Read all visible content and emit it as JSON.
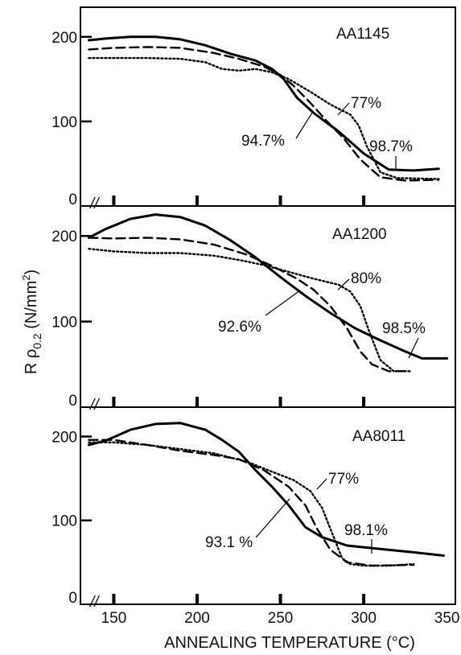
{
  "chart_data": {
    "type": "line",
    "xlabel": "ANNEALING TEMPERATURE (°C)",
    "ylabel": {
      "prefix": "R ρ",
      "subscript": "0.2",
      "units_base": " (N/mm",
      "units_sup": "2",
      "units_close": ")"
    },
    "xlim": [
      130,
      355
    ],
    "xticks": [
      "150",
      "200",
      "250",
      "300",
      "350"
    ],
    "axis_break": "//",
    "panels": [
      {
        "label": "AA1145",
        "ylim": [
          0,
          235
        ],
        "yticks": [
          "0",
          "100",
          "200"
        ],
        "series": [
          {
            "name": "94.7%",
            "style": "solid",
            "x": [
              135,
              145,
              160,
              175,
              190,
              205,
              220,
              235,
              245,
              252,
              260,
              270,
              285,
              300,
              315,
              330,
              345
            ],
            "y": [
              196,
              198,
              200,
              200,
              197,
              190,
              180,
              172,
              162,
              150,
              128,
              110,
              88,
              62,
              43,
              42,
              44
            ]
          },
          {
            "name": "",
            "style": "dashed",
            "x": [
              135,
              150,
              170,
              190,
              210,
              225,
              240,
              250,
              258,
              268,
              278,
              288,
              298,
              310,
              325,
              345
            ],
            "y": [
              185,
              187,
              188,
              187,
              181,
              174,
              165,
              155,
              142,
              122,
              100,
              80,
              55,
              34,
              30,
              31
            ]
          },
          {
            "name": "77%",
            "style": "dotted",
            "x": [
              135,
              150,
              170,
              190,
              205,
              215,
              225,
              235,
              245,
              255,
              268,
              280,
              292,
              297,
              302,
              310,
              320,
              345
            ],
            "y": [
              175,
              175,
              175,
              174,
              170,
              162,
              160,
              162,
              158,
              150,
              135,
              120,
              108,
              95,
              70,
              40,
              33,
              32
            ]
          }
        ],
        "annotations": [
          "94.7%",
          "77%",
          "98.7%"
        ]
      },
      {
        "label": "AA1200",
        "ylim": [
          0,
          235
        ],
        "yticks": [
          "0",
          "100",
          "200"
        ],
        "series": [
          {
            "name": "92.6%",
            "style": "solid",
            "x": [
              135,
              145,
              160,
              175,
              190,
              205,
              220,
              235,
              250,
              265,
              280,
              295,
              310,
              325,
              335,
              350
            ],
            "y": [
              198,
              208,
              220,
              225,
              222,
              212,
              195,
              175,
              152,
              130,
              110,
              92,
              78,
              65,
              57,
              57
            ]
          },
          {
            "name": "",
            "style": "dashed",
            "x": [
              135,
              150,
              170,
              190,
              210,
              230,
              245,
              260,
              270,
              280,
              290,
              298,
              305,
              315,
              325
            ],
            "y": [
              198,
              197,
              198,
              196,
              190,
              178,
              165,
              150,
              137,
              118,
              92,
              65,
              50,
              42,
              42
            ]
          },
          {
            "name": "80%",
            "style": "dotted",
            "x": [
              135,
              150,
              170,
              190,
              210,
              225,
              240,
              255,
              270,
              285,
              292,
              298,
              303,
              310,
              318,
              328
            ],
            "y": [
              185,
              182,
              180,
              180,
              177,
              172,
              166,
              158,
              150,
              143,
              135,
              118,
              90,
              55,
              42,
              42
            ]
          }
        ],
        "annotations": [
          "80%",
          "92.6%",
          "98.5%"
        ]
      },
      {
        "label": "AA8011",
        "ylim": [
          0,
          235
        ],
        "yticks": [
          "0",
          "100",
          "200"
        ],
        "series": [
          {
            "name": "93.1 %",
            "style": "solid",
            "x": [
              135,
              145,
              160,
              175,
              190,
              205,
              215,
              225,
              235,
              245,
              255,
              265,
              275,
              290,
              310,
              330,
              348
            ],
            "y": [
              190,
              195,
              208,
              215,
              216,
              208,
              196,
              182,
              160,
              140,
              118,
              92,
              80,
              70,
              66,
              62,
              58
            ]
          },
          {
            "name": "",
            "style": "dashed",
            "x": [
              135,
              150,
              170,
              190,
              210,
              225,
              240,
              255,
              265,
              272,
              280,
              290,
              305,
              330
            ],
            "y": [
              196,
              196,
              190,
              183,
              178,
              173,
              160,
              140,
              118,
              90,
              65,
              50,
              46,
              47
            ]
          },
          {
            "name": "77%",
            "style": "dotted",
            "x": [
              135,
              150,
              170,
              190,
              210,
              230,
              245,
              258,
              268,
              275,
              282,
              287,
              292,
              300,
              315,
              330
            ],
            "y": [
              193,
              193,
              190,
              185,
              180,
              170,
              158,
              148,
              135,
              115,
              80,
              55,
              48,
              46,
              46,
              48
            ]
          }
        ],
        "annotations": [
          "77%",
          "93.1 %",
          "98.1%"
        ]
      }
    ]
  }
}
